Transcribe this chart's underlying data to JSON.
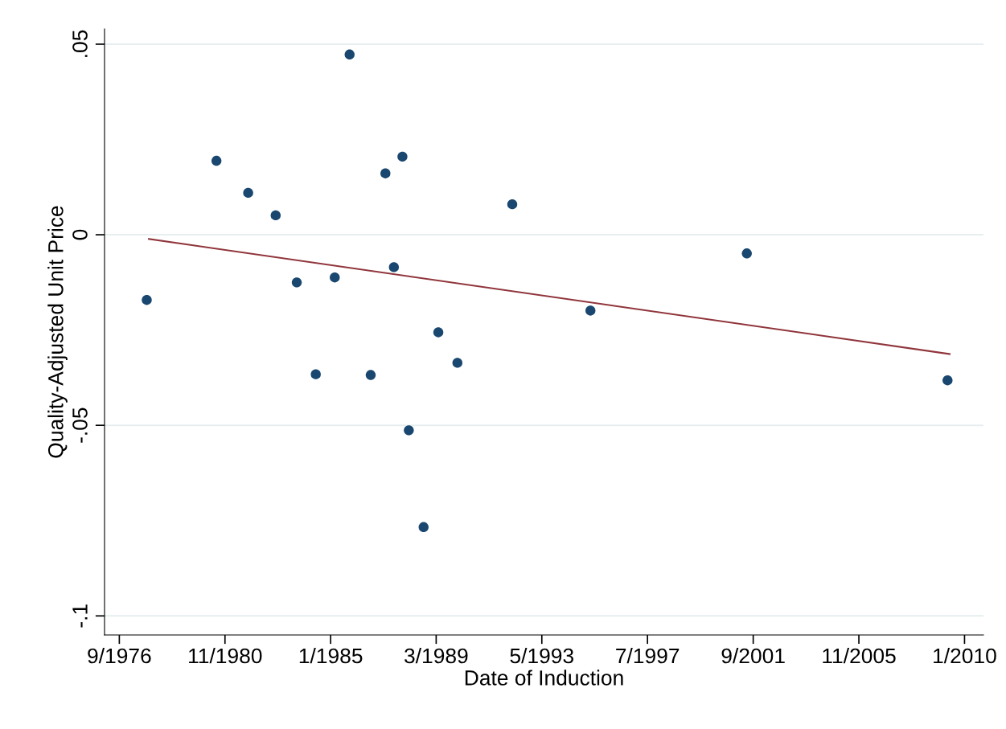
{
  "chart_data": {
    "type": "scatter",
    "xlabel": "Date of Induction",
    "ylabel": "Quality-Adjusted Unit Price",
    "xlim": [
      "1976-02",
      "2010-10"
    ],
    "ylim": [
      -0.105,
      0.054
    ],
    "xticks": [
      {
        "value": "1976-09",
        "label": "9/1976"
      },
      {
        "value": "1980-11",
        "label": "11/1980"
      },
      {
        "value": "1985-01",
        "label": "1/1985"
      },
      {
        "value": "1989-03",
        "label": "3/1989"
      },
      {
        "value": "1993-05",
        "label": "5/1993"
      },
      {
        "value": "1997-07",
        "label": "7/1997"
      },
      {
        "value": "2001-09",
        "label": "9/2001"
      },
      {
        "value": "2005-11",
        "label": "11/2005"
      },
      {
        "value": "2010-01",
        "label": "1/2010"
      }
    ],
    "yticks": [
      {
        "value": -0.1,
        "label": "-.1"
      },
      {
        "value": -0.05,
        "label": "-.05"
      },
      {
        "value": 0,
        "label": "0"
      },
      {
        "value": 0.05,
        "label": ".05"
      }
    ],
    "grid": "y",
    "legend": false,
    "series": [
      {
        "color": "#1a476f",
        "marker": "circle",
        "x": [
          "1977-10",
          "1980-07",
          "1981-10",
          "1982-11",
          "1983-09",
          "1984-06",
          "1985-03",
          "1985-10",
          "1986-08",
          "1987-03",
          "1987-07",
          "1987-11",
          "1988-02",
          "1988-09",
          "1989-04",
          "1990-01",
          "1992-03",
          "1995-04",
          "2001-06",
          "2009-05"
        ],
        "values": [
          -0.0171,
          0.0194,
          0.011,
          0.0051,
          -0.0125,
          -0.0366,
          -0.0112,
          0.0473,
          -0.0368,
          0.0161,
          -0.0085,
          0.0205,
          -0.0513,
          -0.0767,
          -0.0256,
          -0.0336,
          0.008,
          -0.0199,
          -0.0049,
          -0.0382
        ]
      },
      {
        "type": "line",
        "color": "#90353b",
        "line_style": "solid",
        "x": [
          "1977-11",
          "2009-06"
        ],
        "values": [
          -0.0011,
          -0.0313
        ]
      }
    ]
  }
}
